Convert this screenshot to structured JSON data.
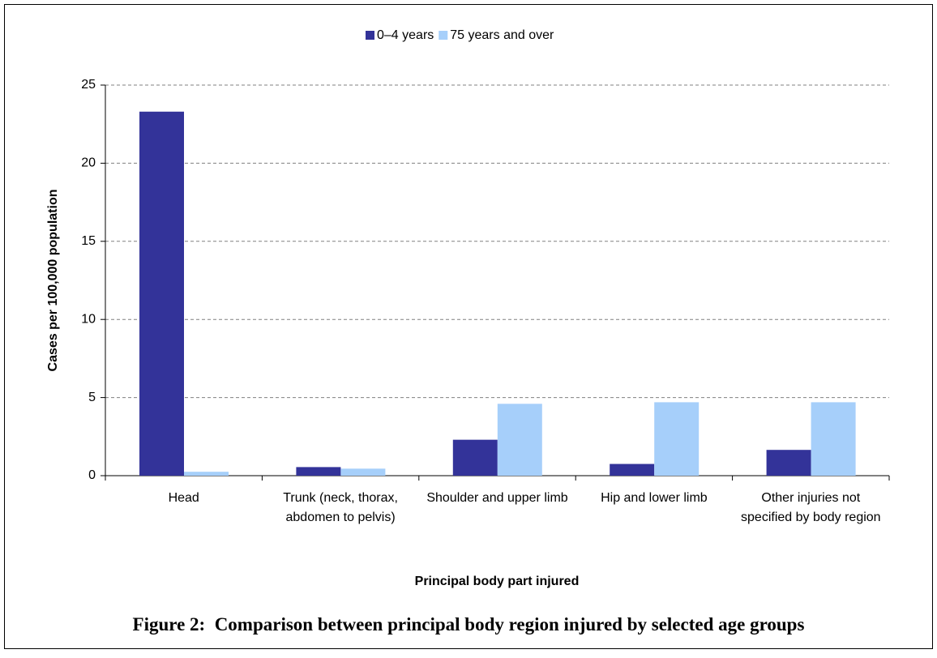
{
  "chart_data": {
    "type": "bar",
    "categories": [
      "Head",
      "Trunk (neck, thorax, abdomen to pelvis)",
      "Shoulder and upper limb",
      "Hip and lower limb",
      "Other injuries not specified by body region"
    ],
    "series": [
      {
        "name": "0–4 years",
        "color": "#333399",
        "values": [
          23.3,
          0.55,
          2.3,
          0.75,
          1.65
        ]
      },
      {
        "name": "75 years and over",
        "color": "#a6cffa",
        "values": [
          0.25,
          0.45,
          4.6,
          4.7,
          4.7
        ]
      }
    ],
    "ylabel": "Cases per 100,000 population",
    "xlabel": "Principal body part injured",
    "caption": "Figure 2:  Comparison between principal body region injured by selected age groups",
    "ylim": [
      0,
      25
    ],
    "yticks": [
      0,
      5,
      10,
      15,
      20,
      25
    ],
    "grid": true,
    "legend": "top"
  }
}
